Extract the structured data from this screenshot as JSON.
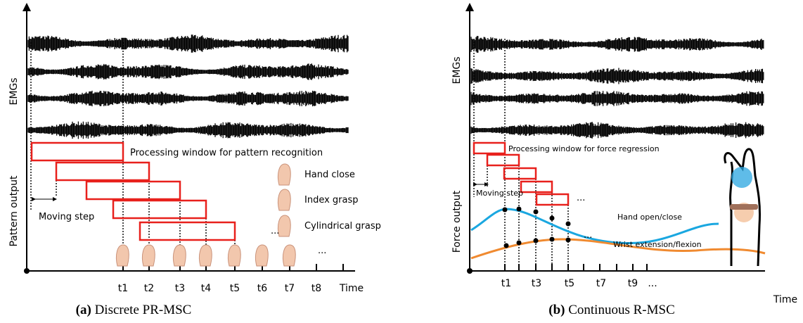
{
  "panels": [
    {
      "y_labels": [
        "EMGs",
        "Pattern output"
      ],
      "window_label": "Processing window for pattern recognition",
      "moving_step": "Moving step",
      "legend": [
        "Hand close",
        "Index grasp",
        "Cylindrical grasp"
      ],
      "ellipses": [
        "...",
        "..."
      ],
      "x_labels": [
        "t1",
        "t2",
        "t3",
        "t4",
        "t5",
        "t6",
        "t7",
        "t8",
        "Time"
      ],
      "caption": {
        "tag": "(a)",
        "text": "Discrete PR-MSC"
      }
    },
    {
      "y_labels": [
        "EMGs",
        "Force output"
      ],
      "window_label": "Processing window for force regression",
      "moving_step": "Moving step",
      "curve_labels": [
        "Hand open/close",
        "Wrist extension/flexion"
      ],
      "ellipses": [
        "...",
        "..."
      ],
      "x_labels": [
        "t1",
        "t3",
        "t5",
        "t7",
        "t9",
        "...",
        "Time"
      ],
      "caption": {
        "tag": "(b)",
        "text": "Continuous R-MSC"
      }
    }
  ]
}
